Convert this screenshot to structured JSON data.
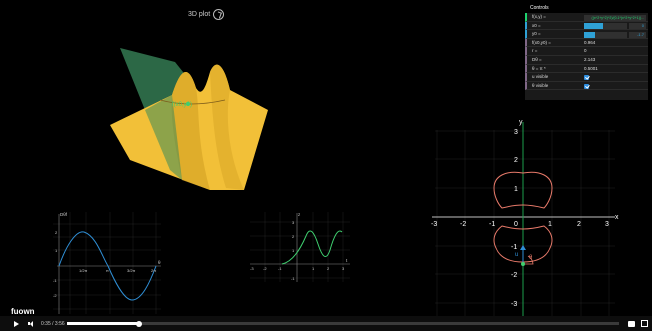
{
  "title": {
    "label": "3D plot"
  },
  "controls": {
    "header": "Controls",
    "rows": [
      {
        "label": "f(x,y) =",
        "value": "((x^2+y^2)^2)/(0.1*(x^2+y^2+1))..."
      },
      {
        "label": "x0 =",
        "value": "0",
        "fraction": 0.45
      },
      {
        "label": "y0 =",
        "value": "-1.7",
        "fraction": 0.25
      },
      {
        "label": "f(x0,y0) =",
        "value": "0.964"
      },
      {
        "label": "r =",
        "value": "0"
      },
      {
        "label": "Dθ =",
        "value": "2.143"
      },
      {
        "label": "θ = π *",
        "value": "0.5001"
      },
      {
        "label": "u visible",
        "checked": true
      },
      {
        "label": "θ visible",
        "checked": true
      }
    ]
  },
  "surface": {
    "label": "f(x0,y0)"
  },
  "graph_left": {
    "y_label": "Dθf",
    "x_label": "θ",
    "y_ticks": [
      "2",
      "1",
      "-1",
      "-2"
    ],
    "x_ticks": [
      "1/2π",
      "π",
      "3/2π",
      "2π"
    ]
  },
  "graph_mid": {
    "y_label": "z",
    "x_label": "t",
    "y_ticks": [
      "3",
      "2",
      "1",
      "-1"
    ],
    "x_ticks": [
      "-3",
      "-2",
      "-1",
      "1",
      "2",
      "3"
    ]
  },
  "contour": {
    "x_label": "x",
    "y_label": "y",
    "x_ticks": [
      "-3",
      "-2",
      "-1",
      "0",
      "1",
      "2",
      "3"
    ],
    "y_ticks": [
      "3",
      "2",
      "1",
      "-1",
      "-2",
      "-3"
    ],
    "u_label": "u",
    "theta_label": "θ"
  },
  "logo": {
    "text": "fuown"
  },
  "player": {
    "time": "0:35 / 3:56",
    "progress": 0.13
  },
  "colors": {
    "surface": "#f5c242",
    "plane": "#2e6e4a",
    "contour": "#e87a6a",
    "curve_blue": "#2f8fd6",
    "curve_green": "#3fcf6f",
    "axis_green": "#1c9e4d"
  }
}
